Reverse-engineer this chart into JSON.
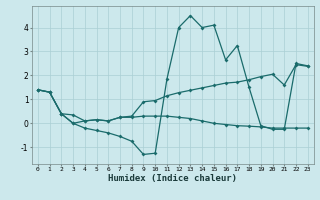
{
  "xlabel": "Humidex (Indice chaleur)",
  "xlim": [
    -0.5,
    23.5
  ],
  "ylim": [
    -1.7,
    4.9
  ],
  "bg_color": "#cce8ec",
  "line_color": "#1a6b6b",
  "grid_color": "#aacfd4",
  "xticks": [
    0,
    1,
    2,
    3,
    4,
    5,
    6,
    7,
    8,
    9,
    10,
    11,
    12,
    13,
    14,
    15,
    16,
    17,
    18,
    19,
    20,
    21,
    22,
    23
  ],
  "yticks": [
    -1,
    0,
    1,
    2,
    3,
    4
  ],
  "line_volatile_x": [
    0,
    1,
    2,
    3,
    4,
    5,
    6,
    7,
    8,
    9,
    10,
    11,
    12,
    13,
    14,
    15,
    16,
    17,
    18,
    19,
    20,
    21,
    22,
    23
  ],
  "line_volatile_y": [
    1.4,
    1.3,
    0.4,
    0.0,
    -0.2,
    -0.3,
    -0.4,
    -0.55,
    -0.75,
    -1.3,
    -1.25,
    1.85,
    4.0,
    4.5,
    4.0,
    4.1,
    2.65,
    3.25,
    1.5,
    -0.1,
    -0.25,
    -0.25,
    2.5,
    2.4
  ],
  "line_trend_x": [
    0,
    1,
    2,
    3,
    4,
    5,
    6,
    7,
    8,
    9,
    10,
    11,
    12,
    13,
    14,
    15,
    16,
    17,
    18,
    19,
    20,
    21,
    22,
    23
  ],
  "line_trend_y": [
    1.4,
    1.3,
    0.4,
    0.35,
    0.1,
    0.15,
    0.1,
    0.25,
    0.3,
    0.9,
    0.95,
    1.15,
    1.28,
    1.38,
    1.48,
    1.58,
    1.68,
    1.72,
    1.82,
    1.95,
    2.05,
    1.6,
    2.45,
    2.38
  ],
  "line_mean_x": [
    0,
    1,
    2,
    3,
    4,
    5,
    6,
    7,
    8,
    9,
    10,
    11,
    12,
    13,
    14,
    15,
    16,
    17,
    18,
    19,
    20,
    21,
    22,
    23
  ],
  "line_mean_y": [
    1.4,
    1.3,
    0.4,
    0.0,
    0.1,
    0.15,
    0.1,
    0.25,
    0.25,
    0.3,
    0.3,
    0.3,
    0.25,
    0.2,
    0.1,
    0.0,
    -0.05,
    -0.1,
    -0.12,
    -0.15,
    -0.2,
    -0.2,
    -0.2,
    -0.2
  ]
}
